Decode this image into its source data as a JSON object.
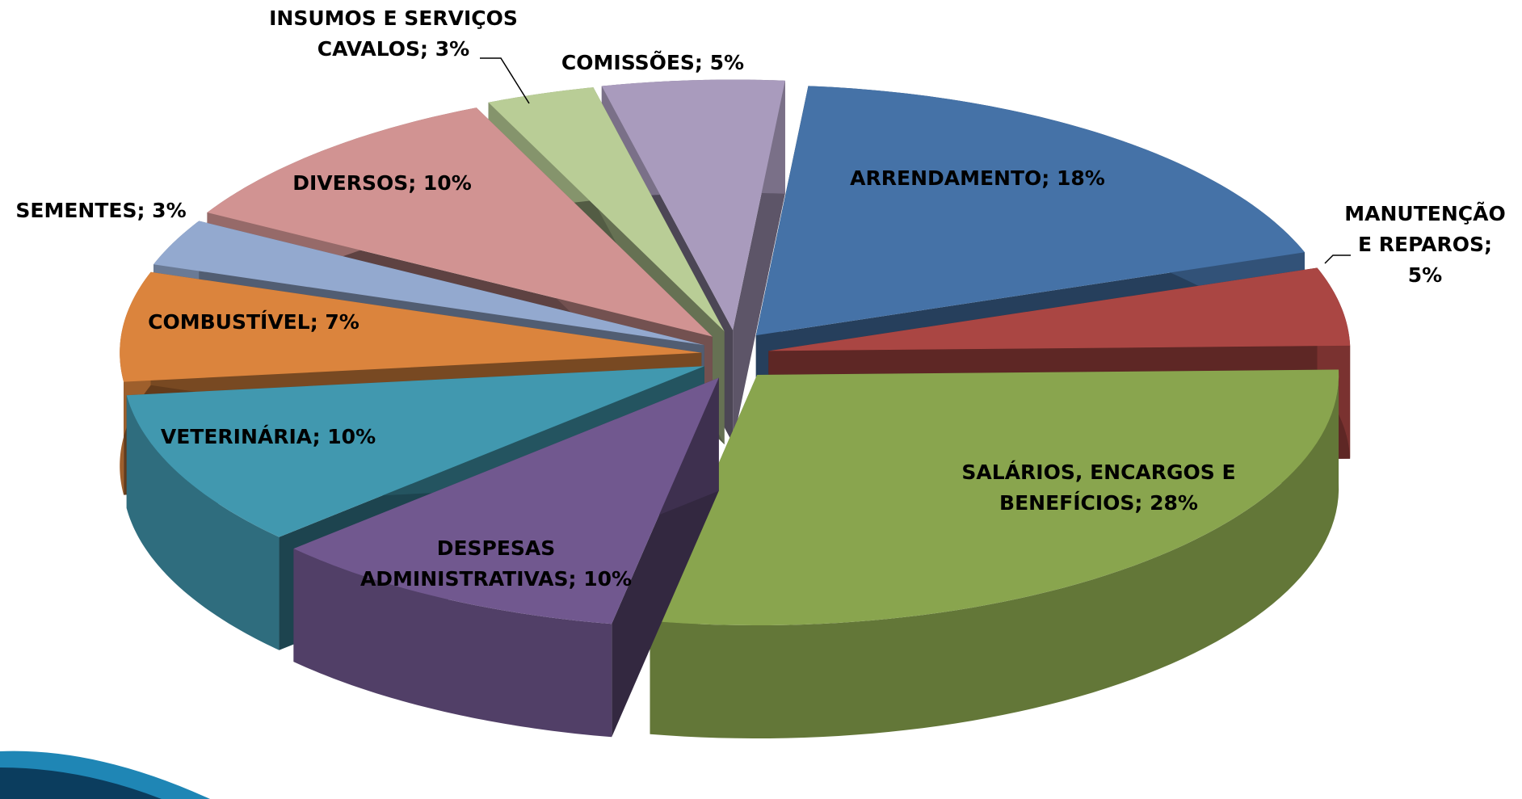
{
  "chart_data": {
    "type": "pie",
    "values": [
      18,
      5,
      28,
      10,
      10,
      7,
      3,
      10,
      3,
      5
    ],
    "value_labels": [
      [
        "ARRENDAMENTO; 18%"
      ],
      [
        "MANUTENÇÃO",
        "E REPAROS;",
        "5%"
      ],
      [
        "SALÁRIOS, ENCARGOS E",
        "BENEFÍCIOS; 28%"
      ],
      [
        "DESPESAS",
        "ADMINISTRATIVAS; 10%"
      ],
      [
        "VETERINÁRIA; 10%"
      ],
      [
        "COMBUSTÍVEL; 7%"
      ],
      [
        "SEMENTES; 3%"
      ],
      [
        "DIVERSOS; 10%"
      ],
      [
        "INSUMOS E SERVIÇOS",
        "CAVALOS; 3%"
      ],
      [
        "COMISSÕES; 5%"
      ]
    ],
    "colors": [
      "#4572a7",
      "#aa4643",
      "#89a54e",
      "#71588f",
      "#4198af",
      "#db843d",
      "#93a9cf",
      "#d19392",
      "#b9cd96",
      "#a99bbd"
    ]
  }
}
